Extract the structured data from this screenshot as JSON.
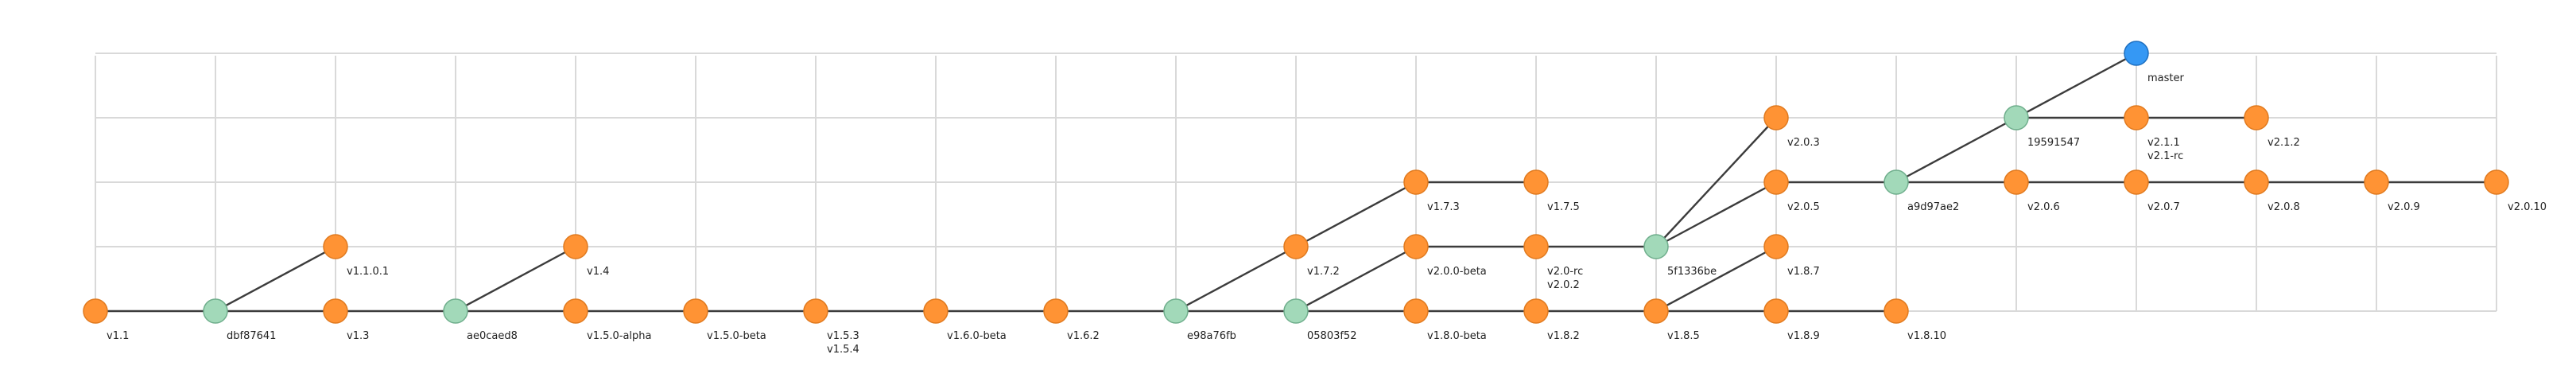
{
  "diagram": {
    "type": "git-graph",
    "colors": {
      "tag": "#ff9334",
      "commit": "#a2d9b9",
      "head": "#3598f4",
      "edge": "#3c3c3c",
      "grid": "#d9d9d9"
    },
    "nodes": [
      {
        "id": "v1.1",
        "kind": "tag",
        "lines": [
          "v1.1"
        ],
        "col": 0,
        "row": 0
      },
      {
        "id": "dbf87641",
        "kind": "commit",
        "lines": [
          "dbf87641"
        ],
        "col": 1,
        "row": 0
      },
      {
        "id": "v1.3",
        "kind": "tag",
        "lines": [
          "v1.3"
        ],
        "col": 2,
        "row": 0
      },
      {
        "id": "v1.1.0.1",
        "kind": "tag",
        "lines": [
          "v1.1.0.1"
        ],
        "col": 2,
        "row": 1
      },
      {
        "id": "ae0caed8",
        "kind": "commit",
        "lines": [
          "ae0caed8"
        ],
        "col": 3,
        "row": 0
      },
      {
        "id": "v1.5.0-alpha",
        "kind": "tag",
        "lines": [
          "v1.5.0-alpha"
        ],
        "col": 4,
        "row": 0
      },
      {
        "id": "v1.4",
        "kind": "tag",
        "lines": [
          "v1.4"
        ],
        "col": 4,
        "row": 1
      },
      {
        "id": "v1.5.0-beta",
        "kind": "tag",
        "lines": [
          "v1.5.0-beta"
        ],
        "col": 5,
        "row": 0
      },
      {
        "id": "v1.5.3",
        "kind": "tag",
        "lines": [
          "v1.5.3",
          "v1.5.4"
        ],
        "col": 6,
        "row": 0
      },
      {
        "id": "v1.6.0-beta",
        "kind": "tag",
        "lines": [
          "v1.6.0-beta"
        ],
        "col": 7,
        "row": 0
      },
      {
        "id": "v1.6.2",
        "kind": "tag",
        "lines": [
          "v1.6.2"
        ],
        "col": 8,
        "row": 0
      },
      {
        "id": "e98a76fb",
        "kind": "commit",
        "lines": [
          "e98a76fb"
        ],
        "col": 9,
        "row": 0
      },
      {
        "id": "v1.7.2",
        "kind": "tag",
        "lines": [
          "v1.7.2"
        ],
        "col": 10,
        "row": 1
      },
      {
        "id": "05803f52",
        "kind": "commit",
        "lines": [
          "05803f52"
        ],
        "col": 10,
        "row": 0
      },
      {
        "id": "v1.7.3",
        "kind": "tag",
        "lines": [
          "v1.7.3"
        ],
        "col": 11,
        "row": 2
      },
      {
        "id": "v2.0.0-beta",
        "kind": "tag",
        "lines": [
          "v2.0.0-beta"
        ],
        "col": 11,
        "row": 1
      },
      {
        "id": "v1.8.0-beta",
        "kind": "tag",
        "lines": [
          "v1.8.0-beta"
        ],
        "col": 11,
        "row": 0
      },
      {
        "id": "v1.7.5",
        "kind": "tag",
        "lines": [
          "v1.7.5"
        ],
        "col": 12,
        "row": 2
      },
      {
        "id": "v2.0-rc",
        "kind": "tag",
        "lines": [
          "v2.0-rc",
          "v2.0.2"
        ],
        "col": 12,
        "row": 1
      },
      {
        "id": "v1.8.2",
        "kind": "tag",
        "lines": [
          "v1.8.2"
        ],
        "col": 12,
        "row": 0
      },
      {
        "id": "5f1336be",
        "kind": "commit",
        "lines": [
          "5f1336be"
        ],
        "col": 13,
        "row": 1
      },
      {
        "id": "v1.8.5",
        "kind": "tag",
        "lines": [
          "v1.8.5"
        ],
        "col": 13,
        "row": 0
      },
      {
        "id": "v2.0.3",
        "kind": "tag",
        "lines": [
          "v2.0.3"
        ],
        "col": 14,
        "row": 3
      },
      {
        "id": "v2.0.5",
        "kind": "tag",
        "lines": [
          "v2.0.5"
        ],
        "col": 14,
        "row": 2
      },
      {
        "id": "v1.8.7",
        "kind": "tag",
        "lines": [
          "v1.8.7"
        ],
        "col": 14,
        "row": 1
      },
      {
        "id": "v1.8.9",
        "kind": "tag",
        "lines": [
          "v1.8.9"
        ],
        "col": 14,
        "row": 0
      },
      {
        "id": "a9d97ae2",
        "kind": "commit",
        "lines": [
          "a9d97ae2"
        ],
        "col": 15,
        "row": 2
      },
      {
        "id": "v1.8.10",
        "kind": "tag",
        "lines": [
          "v1.8.10"
        ],
        "col": 15,
        "row": 0
      },
      {
        "id": "19591547",
        "kind": "commit",
        "lines": [
          "19591547"
        ],
        "col": 16,
        "row": 3
      },
      {
        "id": "v2.0.6",
        "kind": "tag",
        "lines": [
          "v2.0.6"
        ],
        "col": 16,
        "row": 2
      },
      {
        "id": "master",
        "kind": "head",
        "lines": [
          "master"
        ],
        "col": 17,
        "row": 4
      },
      {
        "id": "v2.1.1",
        "kind": "tag",
        "lines": [
          "v2.1.1",
          "v2.1-rc"
        ],
        "col": 17,
        "row": 3
      },
      {
        "id": "v2.0.7",
        "kind": "tag",
        "lines": [
          "v2.0.7"
        ],
        "col": 17,
        "row": 2
      },
      {
        "id": "v2.1.2",
        "kind": "tag",
        "lines": [
          "v2.1.2"
        ],
        "col": 18,
        "row": 3
      },
      {
        "id": "v2.0.8",
        "kind": "tag",
        "lines": [
          "v2.0.8"
        ],
        "col": 18,
        "row": 2
      },
      {
        "id": "v2.0.9",
        "kind": "tag",
        "lines": [
          "v2.0.9"
        ],
        "col": 19,
        "row": 2
      },
      {
        "id": "v2.0.10",
        "kind": "tag",
        "lines": [
          "v2.0.10"
        ],
        "col": 20,
        "row": 2
      }
    ],
    "edges": [
      [
        "v1.1",
        "dbf87641"
      ],
      [
        "dbf87641",
        "v1.3"
      ],
      [
        "dbf87641",
        "v1.1.0.1"
      ],
      [
        "v1.3",
        "ae0caed8"
      ],
      [
        "ae0caed8",
        "v1.5.0-alpha"
      ],
      [
        "ae0caed8",
        "v1.4"
      ],
      [
        "v1.5.0-alpha",
        "v1.5.0-beta"
      ],
      [
        "v1.5.0-beta",
        "v1.5.3"
      ],
      [
        "v1.5.3",
        "v1.6.0-beta"
      ],
      [
        "v1.6.0-beta",
        "v1.6.2"
      ],
      [
        "v1.6.2",
        "e98a76fb"
      ],
      [
        "e98a76fb",
        "v1.7.2"
      ],
      [
        "e98a76fb",
        "05803f52"
      ],
      [
        "v1.7.2",
        "v1.7.3"
      ],
      [
        "v1.7.3",
        "v1.7.5"
      ],
      [
        "05803f52",
        "v2.0.0-beta"
      ],
      [
        "05803f52",
        "v1.8.0-beta"
      ],
      [
        "v2.0.0-beta",
        "v2.0-rc"
      ],
      [
        "v2.0-rc",
        "5f1336be"
      ],
      [
        "v1.8.0-beta",
        "v1.8.2"
      ],
      [
        "v1.8.2",
        "v1.8.5"
      ],
      [
        "v1.8.5",
        "v1.8.7"
      ],
      [
        "v1.8.5",
        "v1.8.9"
      ],
      [
        "v1.8.9",
        "v1.8.10"
      ],
      [
        "5f1336be",
        "v2.0.3"
      ],
      [
        "5f1336be",
        "v2.0.5"
      ],
      [
        "v2.0.5",
        "a9d97ae2"
      ],
      [
        "a9d97ae2",
        "19591547"
      ],
      [
        "a9d97ae2",
        "v2.0.6"
      ],
      [
        "19591547",
        "master"
      ],
      [
        "19591547",
        "v2.1.1"
      ],
      [
        "v2.1.1",
        "v2.1.2"
      ],
      [
        "v2.0.6",
        "v2.0.7"
      ],
      [
        "v2.0.7",
        "v2.0.8"
      ],
      [
        "v2.0.8",
        "v2.0.9"
      ],
      [
        "v2.0.9",
        "v2.0.10"
      ]
    ]
  }
}
